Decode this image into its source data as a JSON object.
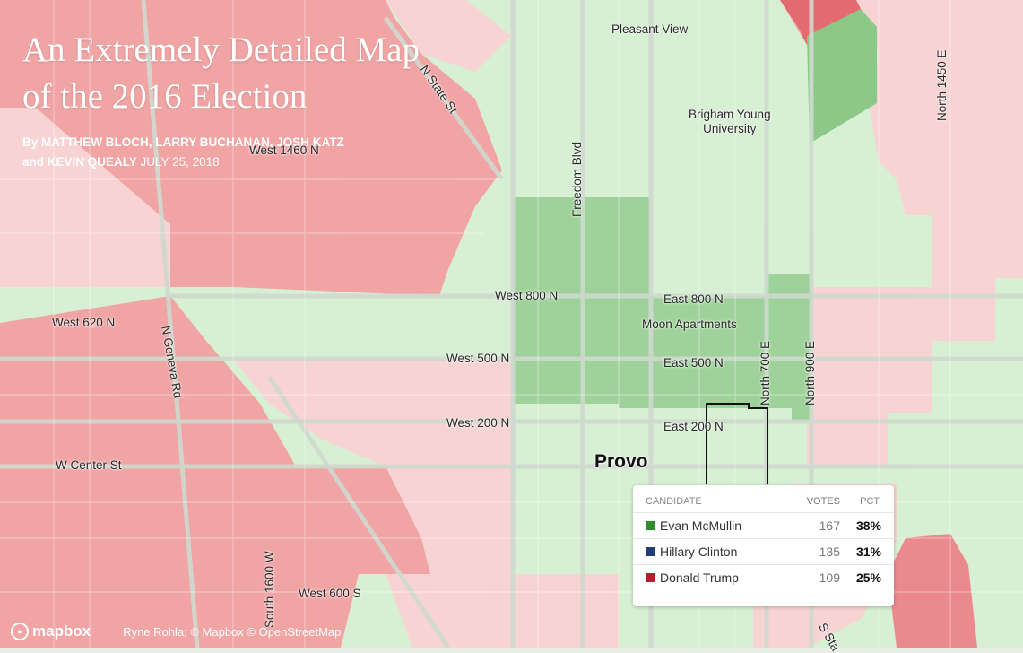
{
  "title_lines": [
    "An Extremely Detailed Map",
    "of the 2016 Election"
  ],
  "byline": {
    "authors_line1": "By MATTHEW BLOCH, LARRY BUCHANAN, JOSH KATZ",
    "authors_line2": "and KEVIN QUEALY",
    "date": "JULY 25, 2018"
  },
  "map_labels": {
    "pleasant_view": "Pleasant View",
    "byu": "Brigham Young\nUniversity",
    "n_state_st": "N State St",
    "north_1450_e": "North 1450 E",
    "freedom_blvd": "Freedom Blvd",
    "west_1460_n": "West 1460 N",
    "west_800_n": "West 800 N",
    "east_800_n": "East 800 N",
    "moon_apartments": "Moon Apartments",
    "west_620_n": "West 620 N",
    "n_geneva_rd": "N Geneva Rd",
    "west_500_n": "West 500 N",
    "east_500_n": "East 500 N",
    "north_700_e": "North 700 E",
    "north_900_e": "North 900 E",
    "west_200_n": "West 200 N",
    "east_200_n": "East 200 N",
    "provo": "Provo",
    "w_center_st": "W Center St",
    "south_1600_w": "South 1600 W",
    "west_600_s": "West 600 S",
    "s_state": "S Sta"
  },
  "attribution": {
    "logo": "mapbox",
    "credits": "Ryne Rohla; © Mapbox © OpenStreetMap"
  },
  "results": {
    "headers": {
      "candidate": "CANDIDATE",
      "votes": "VOTES",
      "pct": "PCT."
    },
    "rows": [
      {
        "name": "Evan McMullin",
        "votes": "167",
        "pct": "38%",
        "color": "#2e8b2e"
      },
      {
        "name": "Hillary Clinton",
        "votes": "135",
        "pct": "31%",
        "color": "#1f3d7a"
      },
      {
        "name": "Donald Trump",
        "votes": "109",
        "pct": "25%",
        "color": "#b0202a"
      }
    ]
  },
  "colors": {
    "trump_strong": "#f0a3a3",
    "trump_light": "#f8d2d2",
    "mcmullin_light": "#d6f0d2",
    "mcmullin_strong": "#9fd29a",
    "mcmullin_darkest": "#7fbf7a",
    "trump_darkest": "#e26a70"
  }
}
